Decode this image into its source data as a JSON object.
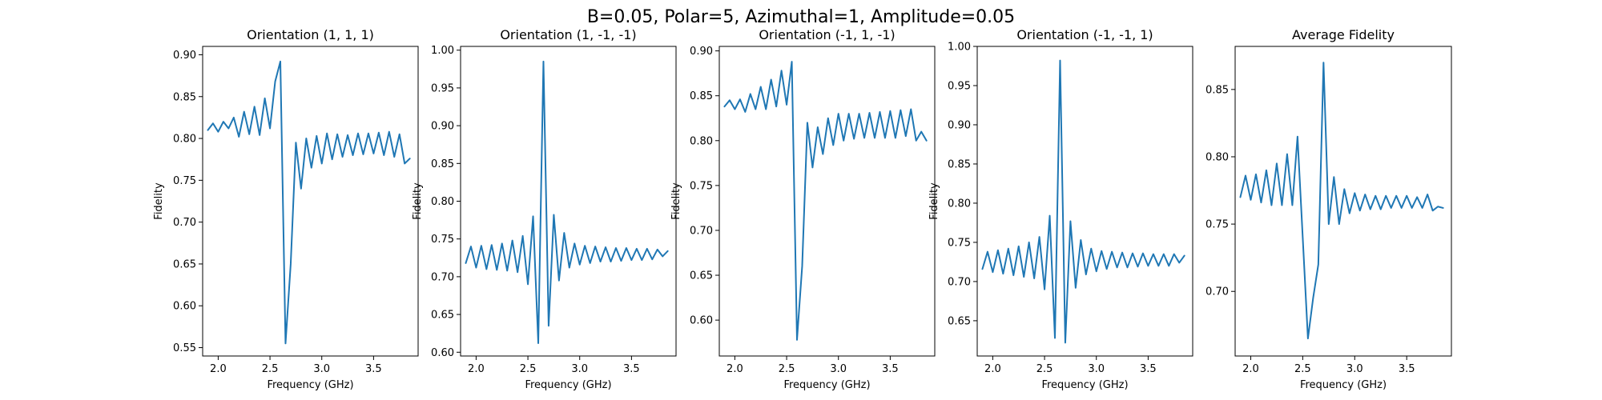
{
  "figure": {
    "suptitle": "B=0.05, Polar=5, Azimuthal=1, Amplitude=0.05",
    "line_color": "#1f77b4"
  },
  "chart_data": [
    {
      "type": "line",
      "title": "Orientation (1, 1, 1)",
      "xlabel": "Frequency (GHz)",
      "ylabel": "Fidelity",
      "xlim": [
        1.85,
        3.93
      ],
      "ylim": [
        0.54,
        0.91
      ],
      "xticks": [
        2.0,
        2.5,
        3.0,
        3.5
      ],
      "yticks": [
        0.55,
        0.6,
        0.65,
        0.7,
        0.75,
        0.8,
        0.85,
        0.9
      ],
      "grid": false,
      "x_start": 1.9,
      "x_step": 0.05,
      "series": [
        {
          "values": [
            0.81,
            0.818,
            0.808,
            0.82,
            0.812,
            0.825,
            0.802,
            0.832,
            0.805,
            0.838,
            0.804,
            0.848,
            0.812,
            0.868,
            0.892,
            0.555,
            0.65,
            0.795,
            0.74,
            0.8,
            0.765,
            0.803,
            0.77,
            0.806,
            0.775,
            0.805,
            0.778,
            0.804,
            0.78,
            0.806,
            0.781,
            0.806,
            0.782,
            0.807,
            0.78,
            0.808,
            0.778,
            0.805,
            0.77,
            0.776
          ]
        }
      ]
    },
    {
      "type": "line",
      "title": "Orientation (1, -1, -1)",
      "xlabel": "Frequency (GHz)",
      "ylabel": "Fidelity",
      "xlim": [
        1.85,
        3.93
      ],
      "ylim": [
        0.595,
        1.005
      ],
      "xticks": [
        2.0,
        2.5,
        3.0,
        3.5
      ],
      "yticks": [
        0.6,
        0.65,
        0.7,
        0.75,
        0.8,
        0.85,
        0.9,
        0.95,
        1.0
      ],
      "grid": false,
      "x_start": 1.9,
      "x_step": 0.05,
      "series": [
        {
          "values": [
            0.718,
            0.74,
            0.712,
            0.741,
            0.71,
            0.742,
            0.709,
            0.744,
            0.708,
            0.748,
            0.706,
            0.754,
            0.69,
            0.78,
            0.612,
            0.985,
            0.635,
            0.782,
            0.695,
            0.758,
            0.712,
            0.744,
            0.716,
            0.741,
            0.718,
            0.74,
            0.72,
            0.739,
            0.72,
            0.738,
            0.721,
            0.738,
            0.722,
            0.737,
            0.722,
            0.737,
            0.723,
            0.736,
            0.727,
            0.734
          ]
        }
      ]
    },
    {
      "type": "line",
      "title": "Orientation (-1, 1, -1)",
      "xlabel": "Frequency (GHz)",
      "ylabel": "Fidelity",
      "xlim": [
        1.85,
        3.93
      ],
      "ylim": [
        0.56,
        0.905
      ],
      "xticks": [
        2.0,
        2.5,
        3.0,
        3.5
      ],
      "yticks": [
        0.6,
        0.65,
        0.7,
        0.75,
        0.8,
        0.85,
        0.9
      ],
      "grid": false,
      "x_start": 1.9,
      "x_step": 0.05,
      "series": [
        {
          "values": [
            0.838,
            0.845,
            0.835,
            0.846,
            0.832,
            0.852,
            0.835,
            0.86,
            0.835,
            0.868,
            0.838,
            0.878,
            0.84,
            0.888,
            0.578,
            0.66,
            0.82,
            0.77,
            0.815,
            0.785,
            0.825,
            0.795,
            0.83,
            0.8,
            0.83,
            0.802,
            0.83,
            0.803,
            0.831,
            0.803,
            0.832,
            0.803,
            0.833,
            0.803,
            0.834,
            0.805,
            0.835,
            0.8,
            0.81,
            0.8
          ]
        }
      ]
    },
    {
      "type": "line",
      "title": "Orientation (-1, -1, 1)",
      "xlabel": "Frequency (GHz)",
      "ylabel": "Fidelity",
      "xlim": [
        1.85,
        3.93
      ],
      "ylim": [
        0.605,
        1.0
      ],
      "xticks": [
        2.0,
        2.5,
        3.0,
        3.5
      ],
      "yticks": [
        0.65,
        0.7,
        0.75,
        0.8,
        0.85,
        0.9,
        0.95,
        1.0
      ],
      "grid": false,
      "x_start": 1.9,
      "x_step": 0.05,
      "series": [
        {
          "values": [
            0.716,
            0.738,
            0.712,
            0.74,
            0.71,
            0.742,
            0.708,
            0.745,
            0.706,
            0.75,
            0.704,
            0.757,
            0.69,
            0.784,
            0.628,
            0.982,
            0.622,
            0.777,
            0.692,
            0.753,
            0.709,
            0.742,
            0.713,
            0.739,
            0.716,
            0.738,
            0.718,
            0.737,
            0.718,
            0.736,
            0.719,
            0.736,
            0.72,
            0.735,
            0.72,
            0.735,
            0.72,
            0.735,
            0.724,
            0.733
          ]
        }
      ]
    },
    {
      "type": "line",
      "title": "Average Fidelity",
      "xlabel": "Frequency (GHz)",
      "ylabel": "",
      "xlim": [
        1.85,
        3.93
      ],
      "ylim": [
        0.652,
        0.882
      ],
      "xticks": [
        2.0,
        2.5,
        3.0,
        3.5
      ],
      "yticks": [
        0.7,
        0.75,
        0.8,
        0.85
      ],
      "grid": false,
      "x_start": 1.9,
      "x_step": 0.05,
      "series": [
        {
          "values": [
            0.77,
            0.786,
            0.768,
            0.787,
            0.766,
            0.79,
            0.764,
            0.795,
            0.764,
            0.802,
            0.764,
            0.815,
            0.74,
            0.665,
            0.695,
            0.72,
            0.87,
            0.75,
            0.785,
            0.75,
            0.776,
            0.758,
            0.773,
            0.76,
            0.772,
            0.761,
            0.771,
            0.761,
            0.771,
            0.762,
            0.771,
            0.762,
            0.771,
            0.762,
            0.77,
            0.762,
            0.772,
            0.76,
            0.763,
            0.762
          ]
        }
      ]
    }
  ]
}
